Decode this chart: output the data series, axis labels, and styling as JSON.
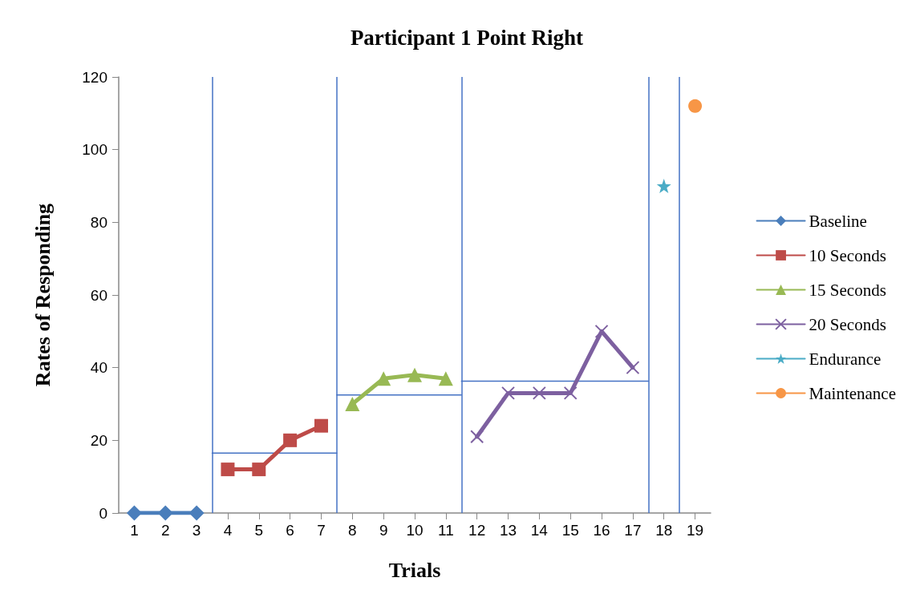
{
  "chart_data": {
    "type": "line",
    "title": "Participant 1 Point Right",
    "xlabel": "Trials",
    "ylabel": "Rates of Responding",
    "xlim": [
      0.5,
      19.5
    ],
    "xticks": [
      1,
      2,
      3,
      4,
      5,
      6,
      7,
      8,
      9,
      10,
      11,
      12,
      13,
      14,
      15,
      16,
      17,
      18,
      19
    ],
    "ylim": [
      0,
      120
    ],
    "yticks": [
      0,
      20,
      40,
      60,
      80,
      100,
      120
    ],
    "grid": false,
    "legend": "right",
    "series": [
      {
        "name": "Baseline",
        "color": "#4a7ebb",
        "marker": "diamond",
        "x": [
          1,
          2,
          3
        ],
        "values": [
          0,
          0,
          0
        ]
      },
      {
        "name": "10 Seconds",
        "color": "#be4b48",
        "marker": "square",
        "x": [
          4,
          5,
          6,
          7
        ],
        "values": [
          12,
          12,
          20,
          24
        ]
      },
      {
        "name": "15 Seconds",
        "color": "#98b954",
        "marker": "triangle",
        "x": [
          8,
          9,
          10,
          11
        ],
        "values": [
          30,
          37,
          38,
          37
        ]
      },
      {
        "name": "20 Seconds",
        "color": "#7d60a0",
        "marker": "cross",
        "x": [
          12,
          13,
          14,
          15,
          16,
          17
        ],
        "values": [
          21,
          33,
          33,
          33,
          50,
          40
        ]
      },
      {
        "name": "Endurance",
        "color": "#4bacc6",
        "marker": "star",
        "x": [
          18
        ],
        "values": [
          90
        ]
      },
      {
        "name": "Maintenance",
        "color": "#f79646",
        "marker": "circle",
        "x": [
          19
        ],
        "values": [
          112
        ]
      },
      {
        "color": "#4472c4",
        "marker": "none",
        "line_style": "solid",
        "x": [
          3.5,
          7.5
        ],
        "values": [
          16.5,
          16.5
        ]
      },
      {
        "color": "#4472c4",
        "marker": "none",
        "line_style": "solid",
        "x": [
          7.5,
          11.5
        ],
        "values": [
          32.5,
          32.5
        ]
      },
      {
        "color": "#4472c4",
        "marker": "none",
        "line_style": "solid",
        "x": [
          11.5,
          17.5
        ],
        "values": [
          36.3,
          36.3
        ]
      }
    ],
    "ref_lines": [
      {
        "axis": "x",
        "value": 3.5,
        "color": "#4472c4"
      },
      {
        "axis": "x",
        "value": 7.5,
        "color": "#4472c4"
      },
      {
        "axis": "x",
        "value": 11.5,
        "color": "#4472c4"
      },
      {
        "axis": "x",
        "value": 17.5,
        "color": "#4472c4"
      },
      {
        "axis": "x",
        "value": 18.5,
        "color": "#4472c4"
      }
    ]
  }
}
